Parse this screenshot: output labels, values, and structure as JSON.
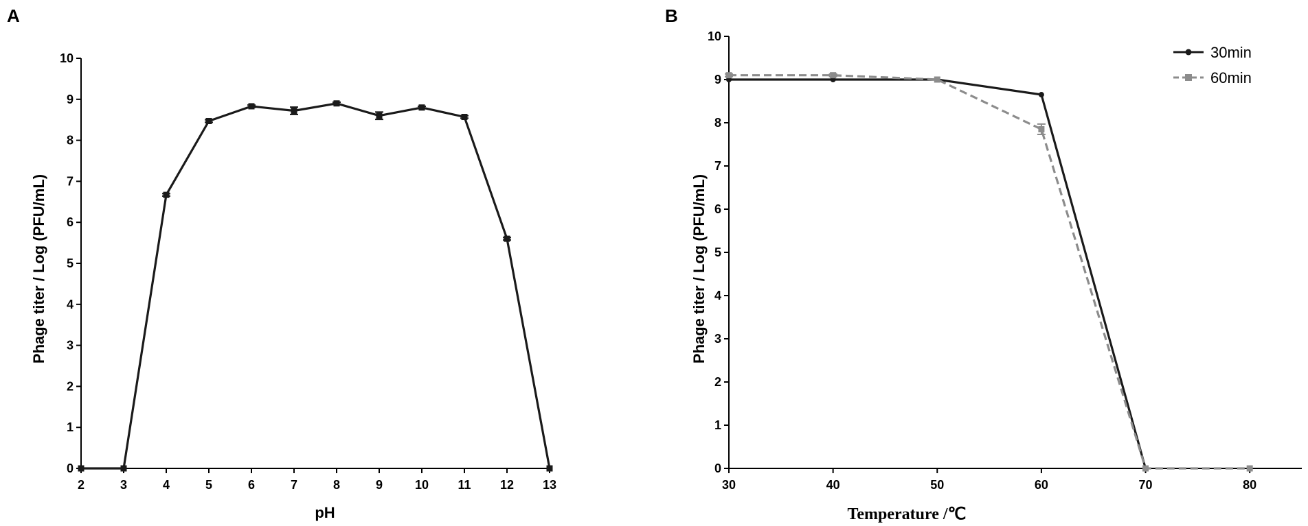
{
  "chart_data": [
    {
      "panel_label": "A",
      "type": "line",
      "xlabel": "pH",
      "ylabel": "Phage titer / Log (PFU/mL)",
      "xlim": [
        2,
        13
      ],
      "ylim": [
        0,
        10
      ],
      "x_ticks": [
        "2",
        "3",
        "4",
        "5",
        "6",
        "7",
        "8",
        "9",
        "10",
        "11",
        "12",
        "13"
      ],
      "y_ticks": [
        "0",
        "1",
        "2",
        "3",
        "4",
        "5",
        "6",
        "7",
        "8",
        "9",
        "10"
      ],
      "grid": false,
      "legend": "none",
      "series": [
        {
          "color": "#1a1a1a",
          "line_style": "solid",
          "marker": "square",
          "x": [
            2,
            3,
            4,
            5,
            6,
            7,
            8,
            9,
            10,
            11,
            12,
            13
          ],
          "y": [
            0,
            0,
            6.67,
            8.47,
            8.83,
            8.72,
            8.9,
            8.6,
            8.8,
            8.57,
            5.6,
            0
          ],
          "error": [
            0,
            0,
            0.03,
            0.03,
            0.03,
            0.09,
            0.03,
            0.09,
            0.03,
            0.03,
            0.03,
            0
          ]
        }
      ]
    },
    {
      "panel_label": "B",
      "type": "line",
      "xlabel": "Temperature /℃",
      "ylabel": "Phage titer / Log (PFU/mL)",
      "xlim": [
        30,
        85
      ],
      "ylim": [
        0,
        10
      ],
      "x_ticks": [
        "30",
        "40",
        "50",
        "60",
        "70",
        "80"
      ],
      "y_ticks": [
        "0",
        "1",
        "2",
        "3",
        "4",
        "5",
        "6",
        "7",
        "8",
        "9",
        "10"
      ],
      "grid": false,
      "legend": "top-right",
      "series": [
        {
          "name": "30min",
          "color": "#1a1a1a",
          "line_style": "solid",
          "marker": "circle",
          "x": [
            30,
            40,
            50,
            60,
            70
          ],
          "y": [
            9.0,
            9.0,
            9.0,
            8.65,
            0
          ],
          "error": [
            0,
            0,
            0,
            0,
            0
          ]
        },
        {
          "name": "60min",
          "color": "#8c8c8c",
          "line_style": "dashed",
          "marker": "square",
          "x": [
            30,
            40,
            50,
            60,
            70,
            80
          ],
          "y": [
            9.1,
            9.1,
            9.0,
            7.85,
            0,
            0
          ],
          "error": [
            0.03,
            0.03,
            0,
            0.12,
            0,
            0
          ]
        }
      ]
    }
  ]
}
